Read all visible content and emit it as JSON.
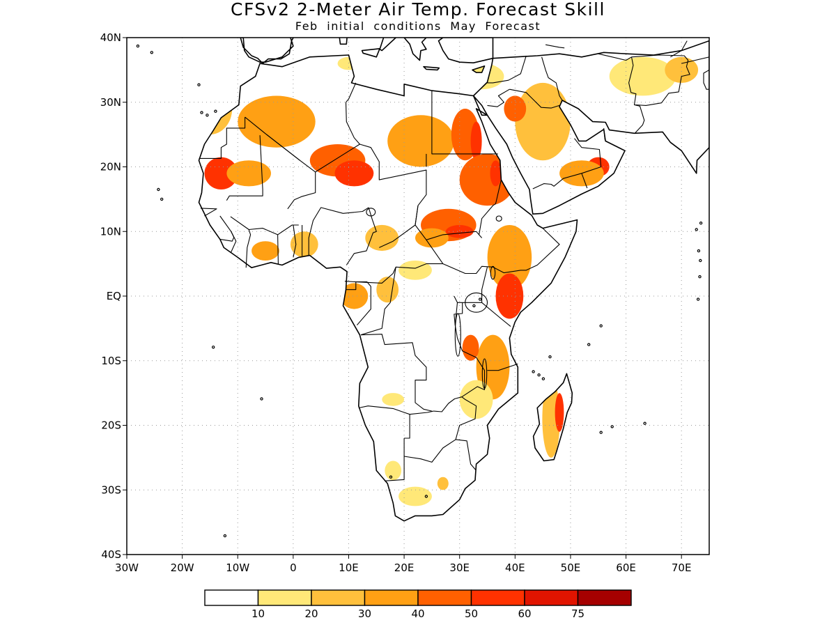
{
  "title": "CFSv2 2-Meter Air Temp. Forecast Skill",
  "subtitle": "Feb initial conditions   May Forecast",
  "axes": {
    "lat_labels": [
      "40N",
      "30N",
      "20N",
      "10N",
      "EQ",
      "10S",
      "20S",
      "30S",
      "40S"
    ],
    "lon_labels": [
      "30W",
      "20W",
      "10W",
      "0",
      "10E",
      "20E",
      "30E",
      "40E",
      "50E",
      "60E",
      "70E"
    ],
    "grid": "dotted",
    "lon_range": [
      -30,
      75
    ],
    "lat_range": [
      -40,
      40
    ]
  },
  "colorbar": {
    "colors": [
      "#ffffff",
      "#ffe878",
      "#ffc03c",
      "#ffa014",
      "#ff6000",
      "#ff3200",
      "#e11400",
      "#a50000"
    ],
    "tick_labels": [
      "10",
      "20",
      "30",
      "40",
      "50",
      "60",
      "75"
    ]
  },
  "chart_data": {
    "type": "heatmap",
    "variable": "forecast skill",
    "regions": [
      {
        "level": "20-30",
        "lon": -15,
        "lat": 29,
        "rx": 4,
        "ry": 4
      },
      {
        "level": "30-40",
        "lon": -3,
        "lat": 27,
        "rx": 7,
        "ry": 4
      },
      {
        "level": "40-50",
        "lon": 8,
        "lat": 21,
        "rx": 5,
        "ry": 2.5
      },
      {
        "level": "50-60",
        "lon": 11,
        "lat": 19,
        "rx": 3.5,
        "ry": 2
      },
      {
        "level": "30-40",
        "lon": 23,
        "lat": 24,
        "rx": 6,
        "ry": 4
      },
      {
        "level": "40-50",
        "lon": 31,
        "lat": 25,
        "rx": 2.5,
        "ry": 4
      },
      {
        "level": "50-60",
        "lon": 33,
        "lat": 24,
        "rx": 1,
        "ry": 3
      },
      {
        "level": "40-50",
        "lon": 35,
        "lat": 18,
        "rx": 5,
        "ry": 4
      },
      {
        "level": "50-60",
        "lon": 36.5,
        "lat": 19,
        "rx": 1,
        "ry": 2
      },
      {
        "level": "50-60",
        "lon": -13,
        "lat": 19,
        "rx": 3,
        "ry": 2.5
      },
      {
        "level": "30-40",
        "lon": -8,
        "lat": 19,
        "rx": 4,
        "ry": 2
      },
      {
        "level": "40-50",
        "lon": 28,
        "lat": 11,
        "rx": 5,
        "ry": 2.5
      },
      {
        "level": "50-60",
        "lon": 30,
        "lat": 10,
        "rx": 2.5,
        "ry": 1
      },
      {
        "level": "20-30",
        "lon": 45,
        "lat": 27,
        "rx": 5,
        "ry": 6
      },
      {
        "level": "40-50",
        "lon": 40,
        "lat": 29,
        "rx": 2,
        "ry": 2
      },
      {
        "level": "50-60",
        "lon": 55,
        "lat": 20,
        "rx": 2,
        "ry": 1.5
      },
      {
        "level": "30-40",
        "lon": 52,
        "lat": 19,
        "rx": 4,
        "ry": 2
      },
      {
        "level": "10-20",
        "lon": 63,
        "lat": 34,
        "rx": 6,
        "ry": 3
      },
      {
        "level": "20-30",
        "lon": 70,
        "lat": 35,
        "rx": 3,
        "ry": 2
      },
      {
        "level": "30-40",
        "lon": 39,
        "lat": 6,
        "rx": 4,
        "ry": 5
      },
      {
        "level": "50-60",
        "lon": 39,
        "lat": 0,
        "rx": 2.5,
        "ry": 3.5
      },
      {
        "level": "30-40",
        "lon": 36,
        "lat": -11,
        "rx": 3,
        "ry": 5
      },
      {
        "level": "40-50",
        "lon": 32,
        "lat": -8,
        "rx": 1.5,
        "ry": 2
      },
      {
        "level": "30-40",
        "lon": 11,
        "lat": 0,
        "rx": 2.5,
        "ry": 2
      },
      {
        "level": "20-30",
        "lon": 17,
        "lat": 1,
        "rx": 2,
        "ry": 2
      },
      {
        "level": "10-20",
        "lon": 22,
        "lat": 4,
        "rx": 3,
        "ry": 1.5
      },
      {
        "level": "10-20",
        "lon": 18,
        "lat": -16,
        "rx": 2,
        "ry": 1
      },
      {
        "level": "10-20",
        "lon": 33,
        "lat": -16,
        "rx": 3,
        "ry": 3
      },
      {
        "level": "10-20",
        "lon": 22,
        "lat": -31,
        "rx": 3,
        "ry": 1.5
      },
      {
        "level": "20-30",
        "lon": 27,
        "lat": -29,
        "rx": 1,
        "ry": 1
      },
      {
        "level": "10-20",
        "lon": 18,
        "lat": -27,
        "rx": 1.5,
        "ry": 1.5
      },
      {
        "level": "20-30",
        "lon": 2,
        "lat": 8,
        "rx": 2.5,
        "ry": 2
      },
      {
        "level": "30-40",
        "lon": -5,
        "lat": 7,
        "rx": 2.5,
        "ry": 1.5
      },
      {
        "level": "20-30",
        "lon": 46.5,
        "lat": -19,
        "rx": 1.6,
        "ry": 6
      },
      {
        "level": "50-60",
        "lon": 48,
        "lat": -18,
        "rx": 0.8,
        "ry": 3
      },
      {
        "level": "10-20",
        "lon": 34,
        "lat": 34,
        "rx": 4,
        "ry": 2
      },
      {
        "level": "10-20",
        "lon": 10,
        "lat": 36,
        "rx": 2,
        "ry": 1
      },
      {
        "level": "20-30",
        "lon": 16,
        "lat": 9,
        "rx": 3,
        "ry": 2
      },
      {
        "level": "30-40",
        "lon": 25,
        "lat": 9,
        "rx": 3,
        "ry": 1.5
      }
    ]
  }
}
